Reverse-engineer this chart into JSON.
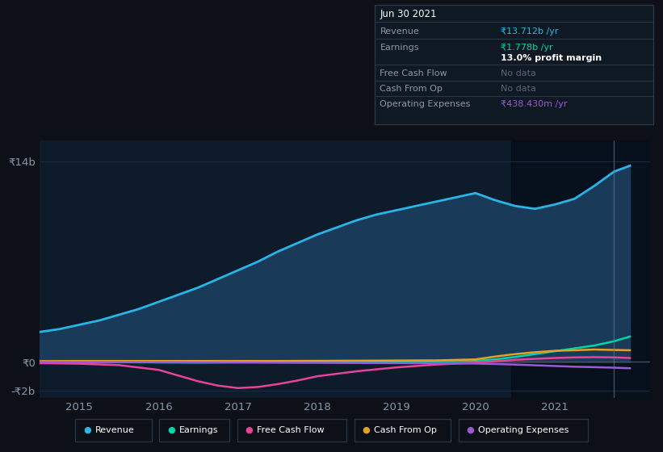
{
  "background_color": "#0d1117",
  "plot_bg_color": "#0d1b2a",
  "xlim": [
    2014.5,
    2022.2
  ],
  "ylim": [
    -2500000000.0,
    15500000000.0
  ],
  "ytick_vals": [
    -2000000000.0,
    0,
    14000000000.0
  ],
  "ytick_labels": [
    "-₹2b",
    "₹0",
    "₹14b"
  ],
  "xticks": [
    2015,
    2016,
    2017,
    2018,
    2019,
    2020,
    2021
  ],
  "grid_color": "#1e2d3d",
  "revenue_x": [
    2014.5,
    2014.75,
    2015.0,
    2015.25,
    2015.5,
    2015.75,
    2016.0,
    2016.25,
    2016.5,
    2016.75,
    2017.0,
    2017.25,
    2017.5,
    2017.75,
    2018.0,
    2018.25,
    2018.5,
    2018.75,
    2019.0,
    2019.25,
    2019.5,
    2019.75,
    2020.0,
    2020.25,
    2020.5,
    2020.75,
    2021.0,
    2021.25,
    2021.5,
    2021.75,
    2021.95
  ],
  "revenue_y": [
    2100000000.0,
    2300000000.0,
    2600000000.0,
    2900000000.0,
    3300000000.0,
    3700000000.0,
    4200000000.0,
    4700000000.0,
    5200000000.0,
    5800000000.0,
    6400000000.0,
    7000000000.0,
    7700000000.0,
    8300000000.0,
    8900000000.0,
    9400000000.0,
    9900000000.0,
    10300000000.0,
    10600000000.0,
    10900000000.0,
    11200000000.0,
    11500000000.0,
    11800000000.0,
    11300000000.0,
    10900000000.0,
    10700000000.0,
    11000000000.0,
    11400000000.0,
    12300000000.0,
    13300000000.0,
    13711000000.0
  ],
  "revenue_color": "#29b5e8",
  "revenue_fill": "#1a3a5a",
  "earnings_x": [
    2014.5,
    2015.0,
    2015.5,
    2016.0,
    2016.5,
    2017.0,
    2017.5,
    2018.0,
    2018.5,
    2019.0,
    2019.5,
    2020.0,
    2020.25,
    2020.5,
    2020.75,
    2021.0,
    2021.25,
    2021.5,
    2021.75,
    2021.95
  ],
  "earnings_y": [
    -50000000.0,
    -30000000.0,
    -20000000.0,
    -30000000.0,
    -40000000.0,
    -20000000.0,
    10000000.0,
    20000000.0,
    30000000.0,
    40000000.0,
    50000000.0,
    80000000.0,
    180000000.0,
    350000000.0,
    550000000.0,
    750000000.0,
    950000000.0,
    1150000000.0,
    1450000000.0,
    1778000000.0
  ],
  "earnings_color": "#00d4a8",
  "fcf_x": [
    2014.5,
    2015.0,
    2015.5,
    2016.0,
    2016.25,
    2016.5,
    2016.75,
    2017.0,
    2017.25,
    2017.5,
    2017.75,
    2018.0,
    2018.5,
    2019.0,
    2019.5,
    2020.0,
    2020.25,
    2020.5,
    2020.75,
    2021.0,
    2021.25,
    2021.5,
    2021.75,
    2021.95
  ],
  "fcf_y": [
    -80000000.0,
    -120000000.0,
    -220000000.0,
    -550000000.0,
    -950000000.0,
    -1350000000.0,
    -1650000000.0,
    -1820000000.0,
    -1750000000.0,
    -1550000000.0,
    -1300000000.0,
    -1000000000.0,
    -650000000.0,
    -380000000.0,
    -180000000.0,
    -50000000.0,
    50000000.0,
    150000000.0,
    220000000.0,
    280000000.0,
    320000000.0,
    340000000.0,
    320000000.0,
    280000000.0
  ],
  "fcf_color": "#e8439a",
  "cfo_x": [
    2014.5,
    2015.0,
    2015.5,
    2016.0,
    2016.5,
    2017.0,
    2017.5,
    2018.0,
    2018.5,
    2019.0,
    2019.5,
    2020.0,
    2020.25,
    2020.5,
    2020.75,
    2021.0,
    2021.25,
    2021.5,
    2021.75,
    2021.95
  ],
  "cfo_y": [
    60000000.0,
    70000000.0,
    70000000.0,
    70000000.0,
    70000000.0,
    70000000.0,
    70000000.0,
    80000000.0,
    90000000.0,
    100000000.0,
    110000000.0,
    180000000.0,
    380000000.0,
    550000000.0,
    680000000.0,
    780000000.0,
    820000000.0,
    870000000.0,
    840000000.0,
    820000000.0
  ],
  "cfo_color": "#e8a020",
  "opex_x": [
    2014.5,
    2015.0,
    2015.5,
    2016.0,
    2016.5,
    2017.0,
    2017.5,
    2018.0,
    2018.5,
    2019.0,
    2019.5,
    2020.0,
    2020.25,
    2020.5,
    2020.75,
    2021.0,
    2021.25,
    2021.5,
    2021.75,
    2021.95
  ],
  "opex_y": [
    -10000000.0,
    -10000000.0,
    -10000000.0,
    -20000000.0,
    -30000000.0,
    -40000000.0,
    -50000000.0,
    -60000000.0,
    -70000000.0,
    -80000000.0,
    -90000000.0,
    -110000000.0,
    -140000000.0,
    -180000000.0,
    -230000000.0,
    -280000000.0,
    -330000000.0,
    -360000000.0,
    -400000000.0,
    -438000000.0
  ],
  "opex_color": "#9b59d6",
  "shaded_x0": 2020.45,
  "shaded_x1": 2022.2,
  "vline_x": 2021.75,
  "info_date": "Jun 30 2021",
  "info_revenue": "₹13.712b /yr",
  "info_revenue_color": "#29b5e8",
  "info_earnings": "₹1.778b /yr",
  "info_earnings_color": "#00d4a8",
  "info_profit_margin": "13.0% profit margin",
  "info_fcf": "No data",
  "info_cfo": "No data",
  "info_opex": "₹438.430m /yr",
  "info_opex_color": "#9b59d6",
  "legend_labels": [
    "Revenue",
    "Earnings",
    "Free Cash Flow",
    "Cash From Op",
    "Operating Expenses"
  ],
  "legend_colors": [
    "#29b5e8",
    "#00d4a8",
    "#e8439a",
    "#e8a020",
    "#9b59d6"
  ],
  "text_color": "#8899aa",
  "nodata_color": "#556677"
}
